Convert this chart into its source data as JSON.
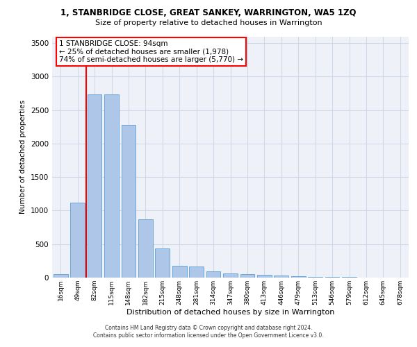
{
  "title": "1, STANBRIDGE CLOSE, GREAT SANKEY, WARRINGTON, WA5 1ZQ",
  "subtitle": "Size of property relative to detached houses in Warrington",
  "xlabel": "Distribution of detached houses by size in Warrington",
  "ylabel": "Number of detached properties",
  "bar_labels": [
    "16sqm",
    "49sqm",
    "82sqm",
    "115sqm",
    "148sqm",
    "182sqm",
    "215sqm",
    "248sqm",
    "281sqm",
    "314sqm",
    "347sqm",
    "380sqm",
    "413sqm",
    "446sqm",
    "479sqm",
    "513sqm",
    "546sqm",
    "579sqm",
    "612sqm",
    "645sqm",
    "678sqm"
  ],
  "bar_values": [
    50,
    1120,
    2730,
    2730,
    2280,
    870,
    430,
    175,
    165,
    90,
    60,
    50,
    40,
    30,
    20,
    15,
    10,
    10,
    5,
    5,
    5
  ],
  "bar_color": "#aec6e8",
  "bar_edge_color": "#5a9fd4",
  "vline_color": "red",
  "annotation_text": "1 STANBRIDGE CLOSE: 94sqm\n← 25% of detached houses are smaller (1,978)\n74% of semi-detached houses are larger (5,770) →",
  "annotation_box_color": "white",
  "annotation_box_edge_color": "red",
  "ylim": [
    0,
    3600
  ],
  "yticks": [
    0,
    500,
    1000,
    1500,
    2000,
    2500,
    3000,
    3500
  ],
  "grid_color": "#d0d8e8",
  "background_color": "#eef2f8",
  "footer_line1": "Contains HM Land Registry data © Crown copyright and database right 2024.",
  "footer_line2": "Contains public sector information licensed under the Open Government Licence v3.0."
}
